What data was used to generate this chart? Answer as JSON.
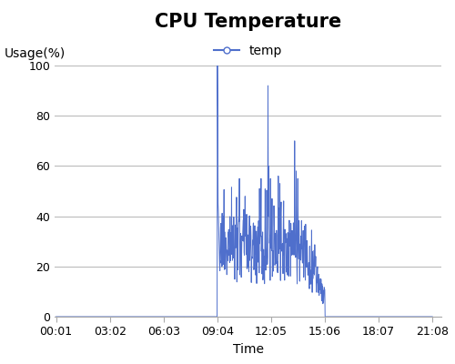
{
  "title": "CPU Temperature",
  "xlabel": "Time",
  "ylabel": "Usage(%)",
  "legend_label": "temp",
  "line_color": "#4f6fcc",
  "ylim": [
    0,
    100
  ],
  "yticks": [
    0,
    20,
    40,
    60,
    80,
    100
  ],
  "xtick_labels": [
    "00:01",
    "03:02",
    "06:03",
    "09:04",
    "12:05",
    "15:06",
    "18:07",
    "21:08"
  ],
  "tick_minutes": [
    1,
    182,
    363,
    544,
    725,
    906,
    1087,
    1268
  ],
  "grid_color": "#bbbbbb",
  "background_color": "#ffffff",
  "title_fontsize": 15,
  "axis_label_fontsize": 10,
  "tick_fontsize": 9,
  "legend_fontsize": 10,
  "total_points": 1200,
  "seed": 7
}
